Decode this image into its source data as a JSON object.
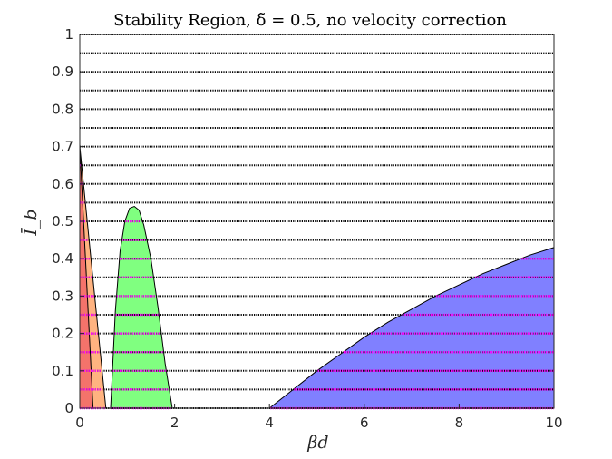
{
  "chart_data": {
    "type": "area",
    "title": "Stability Region, δ̃ = 0.5, no velocity correction",
    "xlabel": "βd",
    "ylabel": "Ī_b",
    "xlim": [
      0,
      10
    ],
    "ylim": [
      0,
      1
    ],
    "x_ticks": [
      "0",
      "2",
      "4",
      "6",
      "8",
      "10"
    ],
    "y_ticks": [
      "0",
      "0.1",
      "0.2",
      "0.3",
      "0.4",
      "0.5",
      "0.6",
      "0.7",
      "0.8",
      "0.9",
      "1"
    ],
    "regions": [
      {
        "color": "#ffb380",
        "points": [
          [
            0,
            0.7
          ],
          [
            0.55,
            0
          ],
          [
            0,
            0
          ]
        ]
      },
      {
        "color": "#f4736b",
        "points": [
          [
            0,
            0.7
          ],
          [
            0.28,
            0
          ],
          [
            0,
            0
          ]
        ]
      },
      {
        "color": "#80ff80",
        "points": [
          [
            0.65,
            0
          ],
          [
            0.75,
            0.26
          ],
          [
            0.85,
            0.42
          ],
          [
            0.95,
            0.5
          ],
          [
            1.05,
            0.535
          ],
          [
            1.15,
            0.54
          ],
          [
            1.25,
            0.53
          ],
          [
            1.35,
            0.49
          ],
          [
            1.5,
            0.4
          ],
          [
            1.65,
            0.27
          ],
          [
            1.8,
            0.12
          ],
          [
            1.95,
            0
          ]
        ]
      },
      {
        "color": "#8080ff",
        "points": [
          [
            4.0,
            0
          ],
          [
            4.5,
            0.05
          ],
          [
            5,
            0.1
          ],
          [
            5.5,
            0.145
          ],
          [
            6,
            0.19
          ],
          [
            6.5,
            0.23
          ],
          [
            7,
            0.265
          ],
          [
            7.5,
            0.3
          ],
          [
            8,
            0.33
          ],
          [
            8.5,
            0.36
          ],
          [
            9,
            0.385
          ],
          [
            9.5,
            0.41
          ],
          [
            10,
            0.43
          ],
          [
            10,
            0
          ]
        ]
      }
    ],
    "grid_lines": {
      "values": [
        0,
        0.05,
        0.1,
        0.15,
        0.2,
        0.25,
        0.3,
        0.35,
        0.4,
        0.45,
        0.5,
        0.55,
        0.6,
        0.65,
        0.7,
        0.75,
        0.8,
        0.85,
        0.9,
        0.95,
        1.0
      ],
      "style": "dotted",
      "color": "#000000",
      "highlight_color": "#ff00ff"
    },
    "grid": true
  }
}
